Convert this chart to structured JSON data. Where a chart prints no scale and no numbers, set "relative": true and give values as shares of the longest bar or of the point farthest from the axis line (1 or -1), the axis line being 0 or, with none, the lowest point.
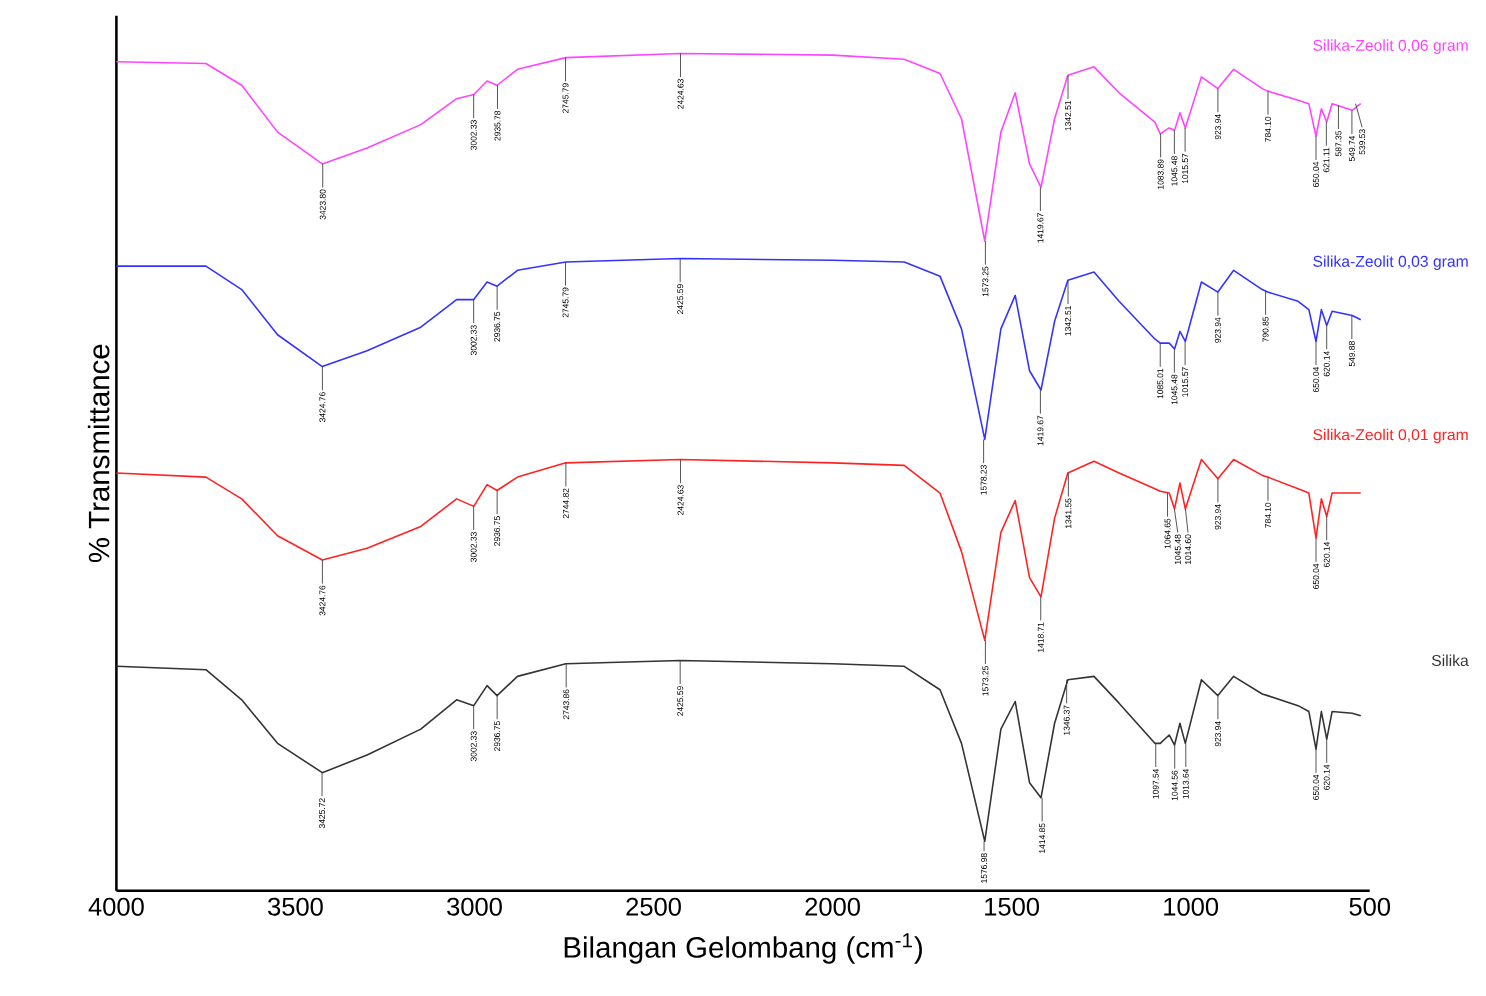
{
  "chart_data": {
    "type": "line",
    "relative": true,
    "xlabel": "Bilangan Gelombang (cm$^{-1}$)",
    "ylabel": "% Transmittance",
    "xlim": [
      4000,
      500
    ],
    "xticks": [
      4000,
      3500,
      3000,
      2500,
      2000,
      1500,
      1000,
      500
    ],
    "x": [
      4000,
      3750,
      3650,
      3550,
      3425,
      3300,
      3150,
      3050,
      3002,
      2965,
      2937,
      2880,
      2745,
      2425,
      2000,
      1800,
      1700,
      1640,
      1575,
      1530,
      1490,
      1450,
      1418,
      1380,
      1343,
      1270,
      1200,
      1100,
      1085,
      1060,
      1045,
      1030,
      1015,
      970,
      924,
      880,
      800,
      785,
      700,
      670,
      650,
      635,
      620,
      605,
      549,
      525
    ],
    "series": [
      {
        "name": "Silika-Zeolit 0,06 gram",
        "color": "#ff44ff",
        "values": [
          0.99,
          0.988,
          0.962,
          0.906,
          0.868,
          0.887,
          0.915,
          0.946,
          0.951,
          0.967,
          0.962,
          0.981,
          0.995,
          1.0,
          0.998,
          0.993,
          0.976,
          0.922,
          0.776,
          0.906,
          0.953,
          0.868,
          0.84,
          0.922,
          0.974,
          0.984,
          0.953,
          0.918,
          0.904,
          0.911,
          0.908,
          0.929,
          0.911,
          0.972,
          0.958,
          0.981,
          0.958,
          0.955,
          0.944,
          0.94,
          0.901,
          0.934,
          0.918,
          0.94,
          0.932,
          0.94
        ]
      },
      {
        "name": "Silika-Zeolit 0,03 gram",
        "color": "#3333ff",
        "values": [
          0.746,
          0.746,
          0.718,
          0.664,
          0.626,
          0.645,
          0.673,
          0.706,
          0.706,
          0.727,
          0.722,
          0.741,
          0.751,
          0.755,
          0.753,
          0.751,
          0.734,
          0.671,
          0.539,
          0.671,
          0.711,
          0.621,
          0.598,
          0.68,
          0.729,
          0.739,
          0.704,
          0.659,
          0.654,
          0.654,
          0.647,
          0.668,
          0.656,
          0.727,
          0.715,
          0.741,
          0.718,
          0.715,
          0.704,
          0.694,
          0.656,
          0.694,
          0.675,
          0.692,
          0.687,
          0.682
        ]
      },
      {
        "name": "Silika-Zeolit 0,01 gram",
        "color": "#ff2222",
        "values": [
          0.499,
          0.494,
          0.468,
          0.424,
          0.395,
          0.409,
          0.435,
          0.468,
          0.459,
          0.485,
          0.478,
          0.494,
          0.511,
          0.515,
          0.511,
          0.508,
          0.475,
          0.405,
          0.299,
          0.428,
          0.466,
          0.374,
          0.351,
          0.445,
          0.499,
          0.513,
          0.499,
          0.48,
          0.477,
          0.475,
          0.456,
          0.487,
          0.456,
          0.515,
          0.492,
          0.515,
          0.496,
          0.494,
          0.48,
          0.475,
          0.421,
          0.468,
          0.447,
          0.475,
          0.475,
          0.475
        ]
      },
      {
        "name": "Silika",
        "color": "#333333",
        "values": [
          0.268,
          0.264,
          0.228,
          0.176,
          0.141,
          0.162,
          0.193,
          0.228,
          0.221,
          0.245,
          0.233,
          0.256,
          0.271,
          0.275,
          0.271,
          0.268,
          0.24,
          0.176,
          0.059,
          0.193,
          0.226,
          0.129,
          0.111,
          0.2,
          0.252,
          0.256,
          0.224,
          0.176,
          0.176,
          0.186,
          0.174,
          0.2,
          0.176,
          0.252,
          0.233,
          0.256,
          0.235,
          0.233,
          0.221,
          0.214,
          0.169,
          0.214,
          0.181,
          0.214,
          0.212,
          0.209
        ]
      }
    ],
    "annotations": [
      {
        "text": "3423.80",
        "x": 3423.8,
        "y": 0.868
      },
      {
        "text": "3002.33",
        "x": 3002.33,
        "y": 0.951
      },
      {
        "text": "2935.78",
        "x": 2935.78,
        "y": 0.962
      },
      {
        "text": "2745.79",
        "x": 2745.79,
        "y": 0.995
      },
      {
        "text": "2424.63",
        "x": 2424.63,
        "y": 1.0
      },
      {
        "text": "1573.25",
        "x": 1573.25,
        "y": 0.776
      },
      {
        "text": "1419.67",
        "x": 1419.67,
        "y": 0.84
      },
      {
        "text": "1342.51",
        "x": 1342.51,
        "y": 0.974
      },
      {
        "text": "1083.89",
        "x": 1083.89,
        "y": 0.904
      },
      {
        "text": "1045.48",
        "x": 1045.48,
        "y": 0.908
      },
      {
        "text": "1015.57",
        "x": 1015.57,
        "y": 0.911
      },
      {
        "text": "923.94",
        "x": 923.94,
        "y": 0.958
      },
      {
        "text": "784.10",
        "x": 784.1,
        "y": 0.955
      },
      {
        "text": "650.04",
        "x": 650.04,
        "y": 0.901
      },
      {
        "text": "621.11",
        "x": 621.11,
        "y": 0.918
      },
      {
        "text": "587.35",
        "x": 587.35,
        "y": 0.938
      },
      {
        "text": "549.74",
        "x": 549.74,
        "y": 0.932
      },
      {
        "text": "539.53",
        "x": 539.53,
        "y": 0.94
      },
      {
        "text": "3424.76",
        "x": 3424.76,
        "y": 0.626
      },
      {
        "text": "3002.33",
        "x": 3002.33,
        "y": 0.706
      },
      {
        "text": "2936.75",
        "x": 2936.75,
        "y": 0.722
      },
      {
        "text": "2745.79",
        "x": 2745.79,
        "y": 0.751
      },
      {
        "text": "2425.59",
        "x": 2425.59,
        "y": 0.755
      },
      {
        "text": "1578.23",
        "x": 1578.23,
        "y": 0.539
      },
      {
        "text": "1419.67",
        "x": 1419.67,
        "y": 0.598
      },
      {
        "text": "1342.51",
        "x": 1342.51,
        "y": 0.729
      },
      {
        "text": "1085.01",
        "x": 1085.01,
        "y": 0.654
      },
      {
        "text": "1045.48",
        "x": 1045.48,
        "y": 0.647
      },
      {
        "text": "1015.57",
        "x": 1015.57,
        "y": 0.656
      },
      {
        "text": "923.94",
        "x": 923.94,
        "y": 0.715
      },
      {
        "text": "790.85",
        "x": 790.85,
        "y": 0.716
      },
      {
        "text": "650.04",
        "x": 650.04,
        "y": 0.656
      },
      {
        "text": "620.14",
        "x": 620.14,
        "y": 0.675
      },
      {
        "text": "549.88",
        "x": 549.88,
        "y": 0.687
      },
      {
        "text": "3424.76",
        "x": 3424.76,
        "y": 0.395
      },
      {
        "text": "3002.33",
        "x": 3002.33,
        "y": 0.459
      },
      {
        "text": "2936.75",
        "x": 2936.75,
        "y": 0.478
      },
      {
        "text": "2744.82",
        "x": 2744.82,
        "y": 0.511
      },
      {
        "text": "2424.63",
        "x": 2424.63,
        "y": 0.515
      },
      {
        "text": "1573.25",
        "x": 1573.25,
        "y": 0.299
      },
      {
        "text": "1418.71",
        "x": 1418.71,
        "y": 0.351
      },
      {
        "text": "1341.55",
        "x": 1341.55,
        "y": 0.499
      },
      {
        "text": "1064.65",
        "x": 1064.65,
        "y": 0.475
      },
      {
        "text": "1045.48",
        "x": 1045.48,
        "y": 0.456
      },
      {
        "text": "1014.60",
        "x": 1014.6,
        "y": 0.456
      },
      {
        "text": "923.94",
        "x": 923.94,
        "y": 0.492
      },
      {
        "text": "784.10",
        "x": 784.1,
        "y": 0.494
      },
      {
        "text": "650.04",
        "x": 650.04,
        "y": 0.421
      },
      {
        "text": "620.14",
        "x": 620.14,
        "y": 0.447
      },
      {
        "text": "3425.72",
        "x": 3425.72,
        "y": 0.141
      },
      {
        "text": "3002.33",
        "x": 3002.33,
        "y": 0.221
      },
      {
        "text": "2936.75",
        "x": 2936.75,
        "y": 0.233
      },
      {
        "text": "2743.86",
        "x": 2743.86,
        "y": 0.271
      },
      {
        "text": "2425.59",
        "x": 2425.59,
        "y": 0.275
      },
      {
        "text": "1576.98",
        "x": 1576.98,
        "y": 0.059
      },
      {
        "text": "1414.85",
        "x": 1414.85,
        "y": 0.111
      },
      {
        "text": "1346.37",
        "x": 1346.37,
        "y": 0.252
      },
      {
        "text": "1097.54",
        "x": 1097.54,
        "y": 0.176
      },
      {
        "text": "1044.56",
        "x": 1044.56,
        "y": 0.174
      },
      {
        "text": "1013.64",
        "x": 1013.64,
        "y": 0.176
      },
      {
        "text": "923.94",
        "x": 923.94,
        "y": 0.233
      },
      {
        "text": "650.04",
        "x": 650.04,
        "y": 0.169
      },
      {
        "text": "620.14",
        "x": 620.14,
        "y": 0.181
      }
    ]
  }
}
